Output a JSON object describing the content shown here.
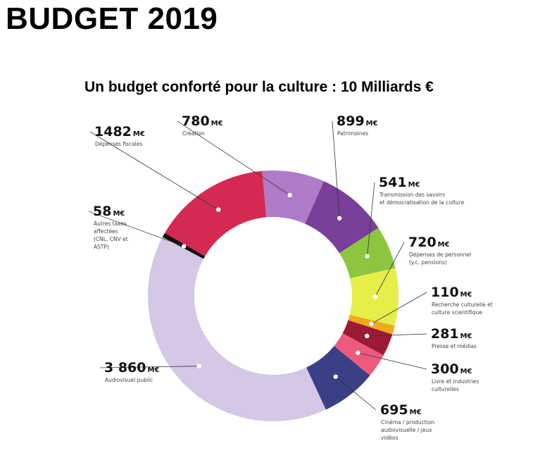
{
  "page_title": "BUDGET 2019",
  "chart_data": {
    "type": "pie",
    "title": "Un budget conforté pour la culture : 10 Milliards €",
    "unit": "M€",
    "categories": [
      "Création",
      "Patrimoines",
      "Transmission des savoirs et démocratisation de la culture",
      "Dépenses de personnel (y.c. pensions)",
      "Recherche culturelle et culture scientifique",
      "Presse et médias",
      "Livre et industries culturelles",
      "Cinéma / production audiovisuelle / jeux vidéos",
      "Audiovisuel public",
      "Autres taxes affectées (CNL, CNV et ASTP)",
      "Dépenses fiscales"
    ],
    "values": [
      780,
      899,
      541,
      720,
      110,
      281,
      300,
      695,
      3860,
      58,
      1482
    ],
    "colors": [
      "#b07bc9",
      "#7a3f98",
      "#8cc63f",
      "#e6ee4a",
      "#f2a71d",
      "#9b1b35",
      "#ee5a7c",
      "#3b3f86",
      "#d4c8e6",
      "#111111",
      "#d42a52"
    ],
    "labels": [
      {
        "value": "780",
        "unit": "M€",
        "lines": [
          "Création"
        ]
      },
      {
        "value": "899",
        "unit": "M€",
        "lines": [
          "Patrimoines"
        ]
      },
      {
        "value": "541",
        "unit": "M€",
        "lines": [
          "Transmission des savoirs",
          "et démocratisation de la culture"
        ]
      },
      {
        "value": "720",
        "unit": "M€",
        "lines": [
          "Dépenses de personnel",
          "(y.c. pensions)"
        ]
      },
      {
        "value": "110",
        "unit": "M€",
        "lines": [
          "Recherche culturelle et",
          "culture scientifique"
        ]
      },
      {
        "value": "281",
        "unit": "M€",
        "lines": [
          "Presse et médias"
        ]
      },
      {
        "value": "300",
        "unit": "M€",
        "lines": [
          "Livre et industries",
          "culturelles"
        ]
      },
      {
        "value": "695",
        "unit": "M€",
        "lines": [
          "Cinéma / production",
          "audiovisuelle / jeux",
          "vidéos"
        ]
      },
      {
        "value": "3 860",
        "unit": "M€",
        "lines": [
          "Audiovisuel public"
        ]
      },
      {
        "value": "58",
        "unit": "M€",
        "lines": [
          "Autres taxes",
          "affectées",
          "(CNL, CNV et",
          "ASTP)"
        ]
      },
      {
        "value": "1482",
        "unit": "M€",
        "lines": [
          "Dépenses fiscales"
        ]
      }
    ]
  }
}
